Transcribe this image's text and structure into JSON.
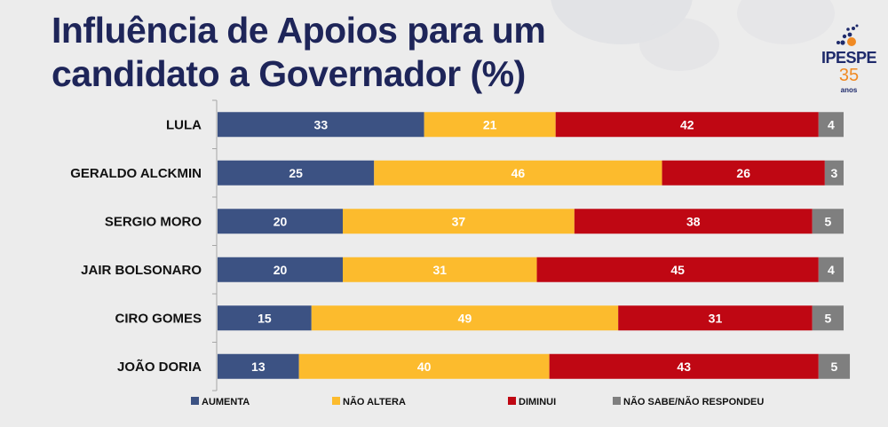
{
  "header": {
    "title_line1": "Influência de Apoios para um",
    "title_line2": "candidato a Governador (%)"
  },
  "logo": {
    "brand": "IPESPE",
    "years": "35",
    "years_label": "anos",
    "brand_color": "#1e2a6b",
    "accent_color": "#f08a24"
  },
  "chart_data": {
    "type": "bar",
    "orientation": "horizontal",
    "stacked": true,
    "title": "Influência de Apoios para um candidato a Governador (%)",
    "xlabel": "",
    "ylabel": "",
    "xlim": [
      0,
      100
    ],
    "grid": false,
    "legend_position": "bottom",
    "categories": [
      "LULA",
      "GERALDO ALCKMIN",
      "SERGIO MORO",
      "JAIR BOLSONARO",
      "CIRO GOMES",
      "JOÃO DORIA"
    ],
    "series": [
      {
        "name": "AUMENTA",
        "color": "#3c5283",
        "values": [
          33,
          25,
          20,
          20,
          15,
          13
        ]
      },
      {
        "name": "NÃO ALTERA",
        "color": "#fcbb2d",
        "values": [
          21,
          46,
          37,
          31,
          49,
          40
        ]
      },
      {
        "name": "DIMINUI",
        "color": "#bf0713",
        "values": [
          42,
          26,
          38,
          45,
          31,
          43
        ]
      },
      {
        "name": "NÃO SABE/NÃO RESPONDEU",
        "color": "#7f7f7f",
        "values": [
          4,
          3,
          5,
          4,
          5,
          5
        ]
      }
    ]
  }
}
